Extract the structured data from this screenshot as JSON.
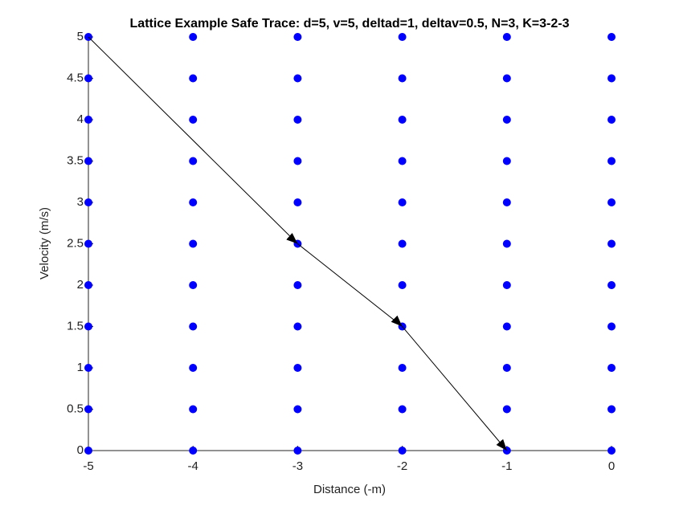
{
  "chart_data": {
    "type": "scatter",
    "title": "Lattice Example Safe Trace: d=5, v=5, deltad=1, deltav=0.5, N=3, K=3-2-3",
    "xlabel": "Distance (-m)",
    "ylabel": "Velocity (m/s)",
    "lattice_x": [
      -5,
      -4,
      -3,
      -2,
      -1,
      0
    ],
    "lattice_y": [
      0,
      0.5,
      1,
      1.5,
      2,
      2.5,
      3,
      3.5,
      4,
      4.5,
      5
    ],
    "point_color": "#0000ff",
    "trace": {
      "x": [
        -5,
        -3,
        -2,
        -1
      ],
      "y": [
        5,
        2.5,
        1.5,
        0
      ],
      "color": "#000000"
    },
    "xlim": [
      -5,
      0
    ],
    "ylim": [
      0,
      5
    ],
    "xticks": [
      -5,
      -4,
      -3,
      -2,
      -1,
      0
    ],
    "yticks": [
      0,
      0.5,
      1,
      1.5,
      2,
      2.5,
      3,
      3.5,
      4,
      4.5,
      5
    ],
    "grid": false
  }
}
